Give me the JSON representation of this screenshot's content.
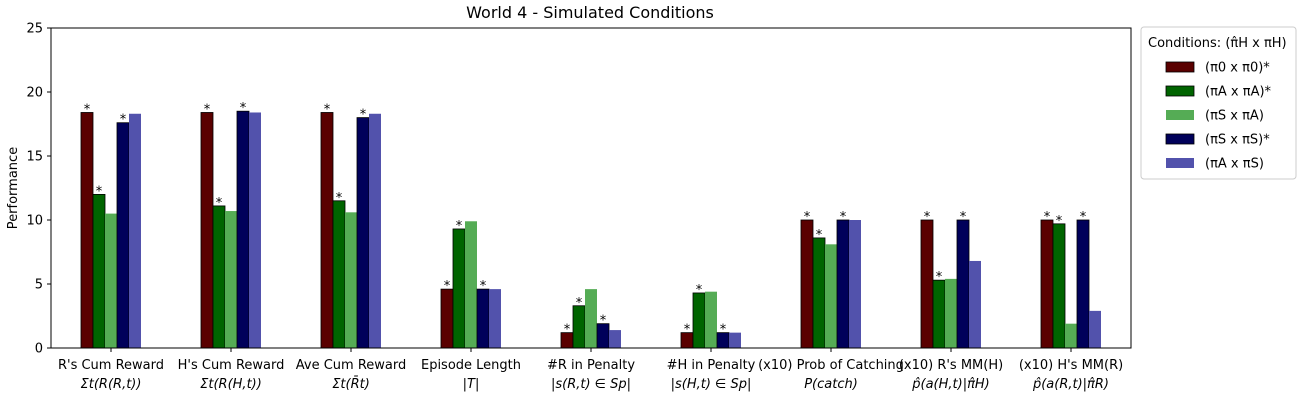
{
  "chart_data": {
    "type": "bar",
    "title": "World 4 - Simulated Conditions",
    "ylabel": "Performance",
    "xlabel": "",
    "ylim": [
      0,
      25
    ],
    "yticks": [
      0,
      5,
      10,
      15,
      20,
      25
    ],
    "grid": false,
    "legend_position": "outside-right-top",
    "legend_title": "Conditions: (π̂H x πH)",
    "categories": [
      {
        "line1": "R's Cum Reward",
        "line2": "Σt(R(R,t))"
      },
      {
        "line1": "H's Cum Reward",
        "line2": "Σt(R(H,t))"
      },
      {
        "line1": "Ave Cum Reward",
        "line2": "Σt(R̄t)"
      },
      {
        "line1": "Episode Length",
        "line2": "|T|"
      },
      {
        "line1": "#R in Penalty",
        "line2": "|s(R,t) ∈ Sp|"
      },
      {
        "line1": "#H in Penalty",
        "line2": "|s(H,t) ∈ Sp|"
      },
      {
        "line1": "(x10) Prob of Catching",
        "line2": "P(catch)"
      },
      {
        "line1": "(x10) R's MM(H)",
        "line2": "p̂(a(H,t)|π̂H)"
      },
      {
        "line1": "(x10) H's MM(R)",
        "line2": "p̂(a(R,t)|π̂R)"
      }
    ],
    "series": [
      {
        "name": "(π0 x π0)*",
        "color": "#5a0000",
        "values": [
          18.4,
          18.4,
          18.4,
          4.6,
          1.2,
          1.2,
          10.0,
          10.0,
          10.0
        ],
        "stars": [
          true,
          true,
          true,
          true,
          true,
          true,
          true,
          true,
          true
        ]
      },
      {
        "name": "(πA x πA)*",
        "color": "#006400",
        "values": [
          12.0,
          11.1,
          11.5,
          9.3,
          3.3,
          4.3,
          8.6,
          5.3,
          9.7
        ],
        "stars": [
          true,
          true,
          true,
          true,
          true,
          true,
          true,
          true,
          true
        ]
      },
      {
        "name": "(πS x πA)",
        "color": "#55ac55",
        "values": [
          10.5,
          10.7,
          10.6,
          9.9,
          4.6,
          4.4,
          8.1,
          5.4,
          1.9
        ],
        "stars": [
          false,
          false,
          false,
          false,
          false,
          false,
          false,
          false,
          false
        ]
      },
      {
        "name": "(πS x πS)*",
        "color": "#00005a",
        "values": [
          17.6,
          18.5,
          18.0,
          4.6,
          1.9,
          1.2,
          10.0,
          10.0,
          10.0
        ],
        "stars": [
          true,
          true,
          true,
          true,
          true,
          true,
          true,
          true,
          true
        ]
      },
      {
        "name": "(πA x πS)",
        "color": "#5252ac",
        "values": [
          18.3,
          18.4,
          18.3,
          4.6,
          1.4,
          1.2,
          10.0,
          6.8,
          2.9
        ],
        "stars": [
          false,
          false,
          false,
          false,
          false,
          false,
          false,
          false,
          false
        ]
      }
    ]
  }
}
